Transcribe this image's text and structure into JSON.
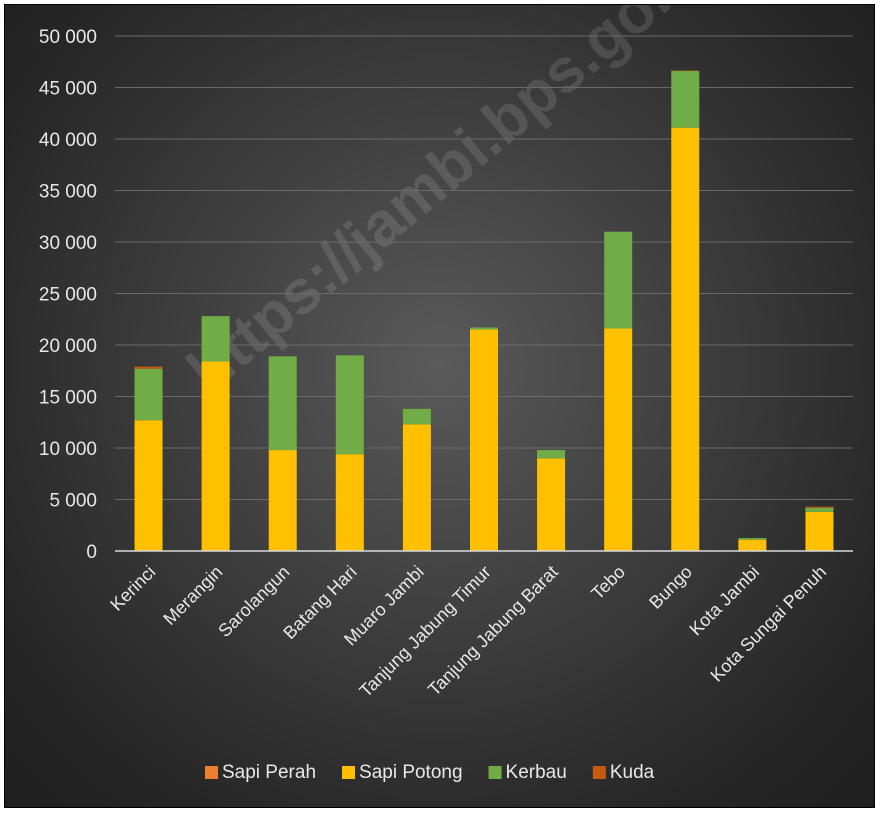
{
  "watermark": "https://jambi.bps.go.id",
  "chart_data": {
    "type": "bar",
    "stacked": true,
    "title": "",
    "xlabel": "",
    "ylabel": "",
    "ylim": [
      0,
      50000
    ],
    "yticks": [
      0,
      5000,
      10000,
      15000,
      20000,
      25000,
      30000,
      35000,
      40000,
      45000,
      50000
    ],
    "ytick_labels": [
      "0",
      "5 000",
      "10 000",
      "15 000",
      "20 000",
      "25 000",
      "30 000",
      "35 000",
      "40 000",
      "45 000",
      "50 000"
    ],
    "grid": true,
    "legend_position": "bottom",
    "categories": [
      "Kerinci",
      "Merangin",
      "Sarolangun",
      "Batang Hari",
      "Muaro Jambi",
      "Tanjung Jabung Timur",
      "Tanjung Jabung Barat",
      "Tebo",
      "Bungo",
      "Kota Jambi",
      "Kota Sungai Penuh"
    ],
    "series": [
      {
        "name": "Sapi Perah",
        "color": "#ED7D31",
        "values": [
          0,
          0,
          0,
          0,
          0,
          0,
          0,
          0,
          0,
          0,
          0
        ]
      },
      {
        "name": "Sapi Potong",
        "color": "#FFC000",
        "values": [
          12700,
          18400,
          9800,
          9400,
          12300,
          21500,
          9000,
          21600,
          41100,
          1100,
          3800
        ]
      },
      {
        "name": "Kerbau",
        "color": "#70AD47",
        "values": [
          5000,
          4400,
          9100,
          9600,
          1500,
          200,
          800,
          9400,
          5500,
          150,
          400
        ]
      },
      {
        "name": "Kuda",
        "color": "#C55A11",
        "values": [
          200,
          0,
          0,
          0,
          0,
          0,
          0,
          0,
          50,
          0,
          100
        ]
      }
    ]
  }
}
